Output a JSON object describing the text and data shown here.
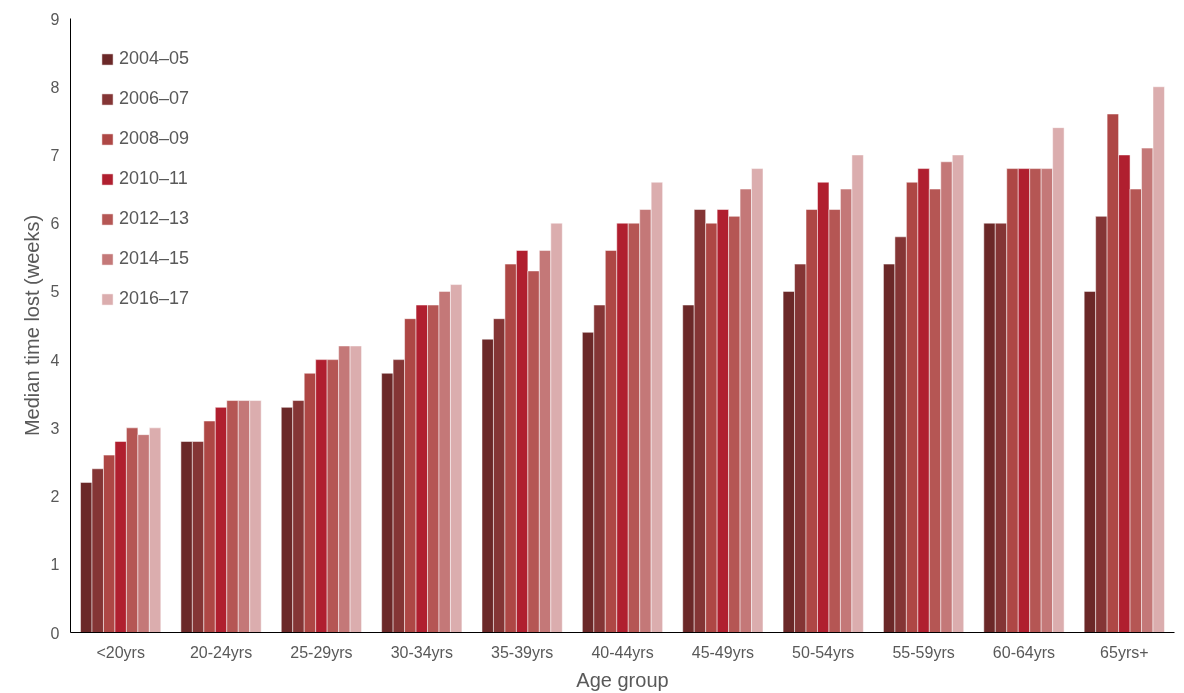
{
  "chart_data": {
    "type": "bar",
    "xlabel": "Age group",
    "ylabel": "Median time lost (weeks)",
    "categories": [
      "<20yrs",
      "20-24yrs",
      "25-29yrs",
      "30-34yrs",
      "35-39yrs",
      "40-44yrs",
      "45-49yrs",
      "50-54yrs",
      "55-59yrs",
      "60-64yrs",
      "65yrs+"
    ],
    "series": [
      {
        "name": "2004–05",
        "color": "#6b2828",
        "values": [
          2.2,
          2.8,
          3.3,
          3.8,
          4.3,
          4.4,
          4.8,
          5.0,
          5.4,
          6.0,
          5.0
        ]
      },
      {
        "name": "2006–07",
        "color": "#843535",
        "values": [
          2.4,
          2.8,
          3.4,
          4.0,
          4.6,
          4.8,
          6.2,
          5.4,
          5.8,
          6.0,
          6.1
        ]
      },
      {
        "name": "2008–09",
        "color": "#ae4745",
        "values": [
          2.6,
          3.1,
          3.8,
          4.6,
          5.4,
          5.6,
          6.0,
          6.2,
          6.6,
          6.8,
          7.6
        ]
      },
      {
        "name": "2010–11",
        "color": "#b01f2f",
        "values": [
          2.8,
          3.3,
          4.0,
          4.8,
          5.6,
          6.0,
          6.2,
          6.6,
          6.8,
          6.8,
          7.0
        ]
      },
      {
        "name": "2012–13",
        "color": "#b55654",
        "values": [
          3.0,
          3.4,
          4.0,
          4.8,
          5.3,
          6.0,
          6.1,
          6.2,
          6.5,
          6.8,
          6.5
        ]
      },
      {
        "name": "2014–15",
        "color": "#c47878",
        "values": [
          2.9,
          3.4,
          4.2,
          5.0,
          5.6,
          6.2,
          6.5,
          6.5,
          6.9,
          6.8,
          7.1
        ]
      },
      {
        "name": "2016–17",
        "color": "#dbadae",
        "values": [
          3.0,
          3.4,
          4.2,
          5.1,
          6.0,
          6.6,
          6.8,
          7.0,
          7.0,
          7.4,
          8.0
        ]
      }
    ],
    "ylim": [
      0,
      9
    ],
    "yticks": [
      0,
      1,
      2,
      3,
      4,
      5,
      6,
      7,
      8,
      9
    ],
    "grid": false,
    "legend": "top left"
  }
}
